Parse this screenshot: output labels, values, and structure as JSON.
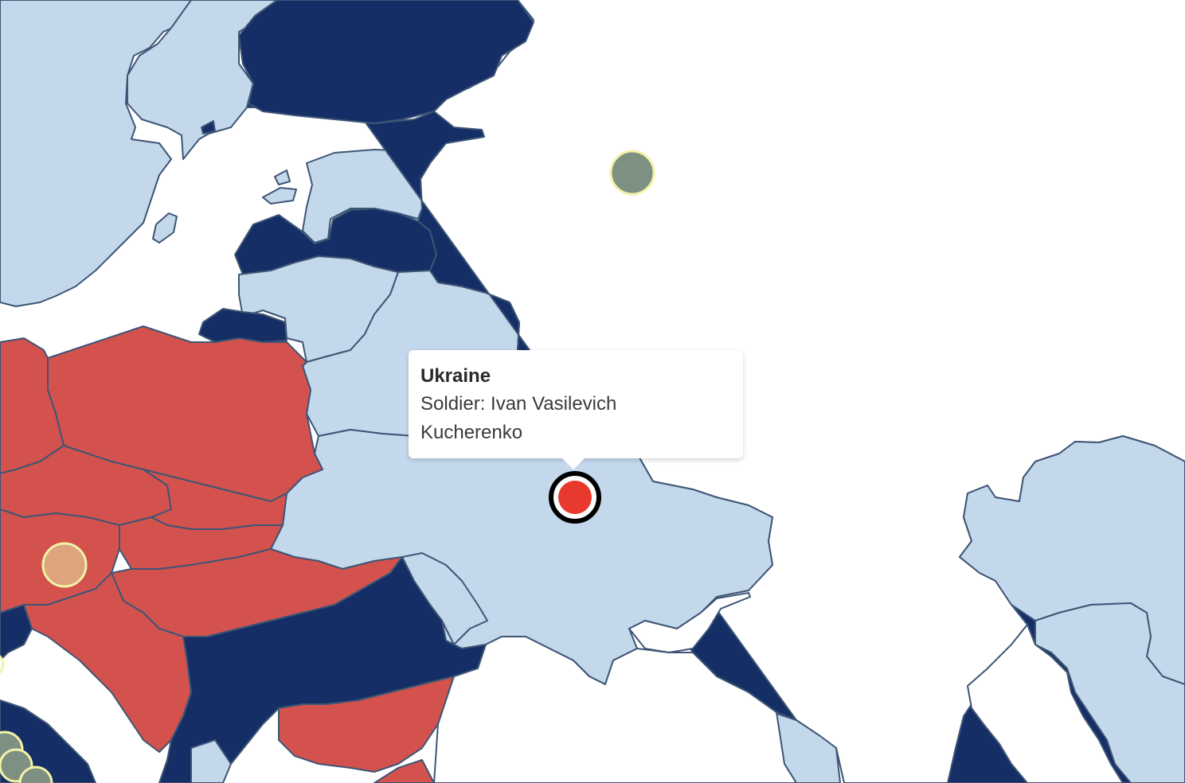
{
  "tooltip": {
    "country": "Ukraine",
    "label": "Soldier: Ivan Vasilevich Kucherenko"
  },
  "colors": {
    "sea": "#ffffff",
    "neutral_country": "#c4d8ec",
    "dark_country": "#152e66",
    "red_country": "#d4524d",
    "border": "#3e5575",
    "selected_marker": "#e8392f",
    "marker_green": "#7e9082",
    "marker_orange": "#dda47e",
    "marker_ring": "#f2f3a6"
  },
  "markers": [
    {
      "name": "russia-marker",
      "color": "marker_green"
    },
    {
      "name": "austria-marker",
      "color": "marker_orange"
    },
    {
      "name": "ukraine-selected-marker",
      "color": "selected_marker"
    }
  ]
}
